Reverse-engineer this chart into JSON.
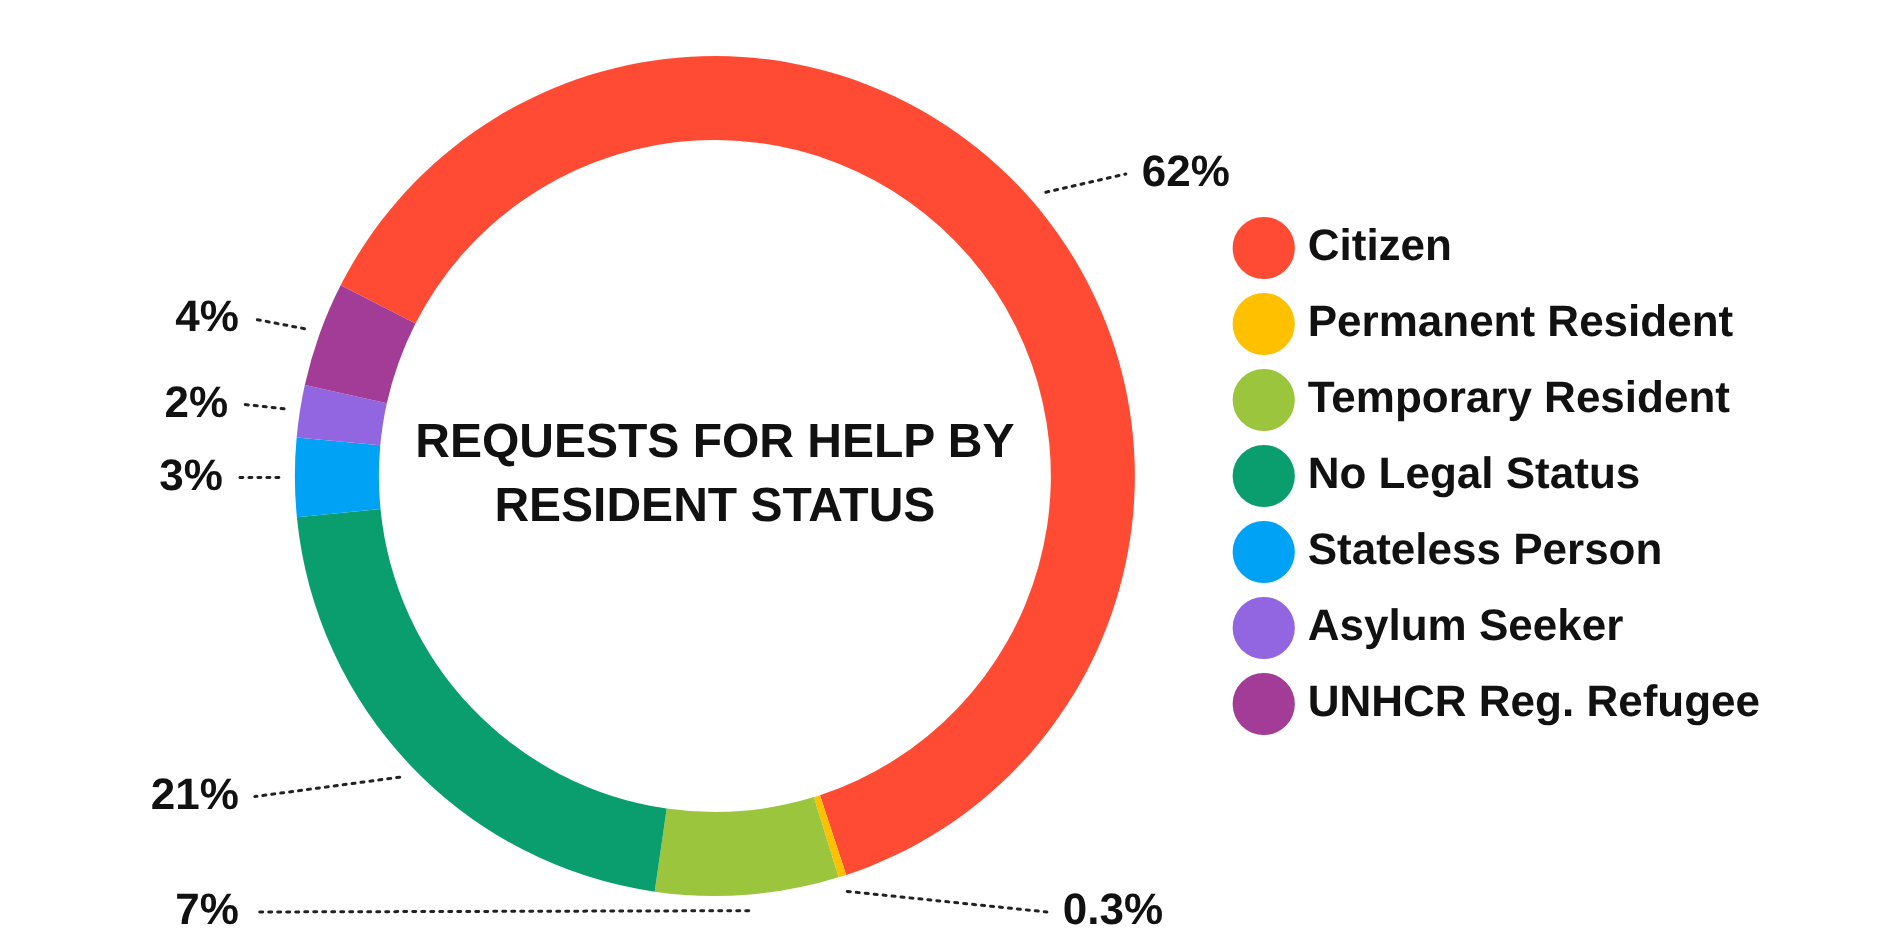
{
  "chart_data": {
    "type": "donut",
    "title": "REQUESTS FOR HELP BY RESIDENT STATUS",
    "categories": [
      "Citizen",
      "Permanent Resident",
      "Temporary Resident",
      "No Legal Status",
      "Stateless Person",
      "Asylum Seeker",
      "UNHCR Reg. Refugee"
    ],
    "values": [
      62,
      0.3,
      7,
      21,
      3,
      2,
      4
    ],
    "value_labels": [
      "62%",
      "0.3%",
      "7%",
      "21%",
      "3%",
      "2%",
      "4%"
    ],
    "colors": [
      "#ff4b33",
      "#ffc000",
      "#9bc53d",
      "#0a9e6e",
      "#00a2f5",
      "#9166e0",
      "#a23c96"
    ],
    "legend": "right"
  }
}
